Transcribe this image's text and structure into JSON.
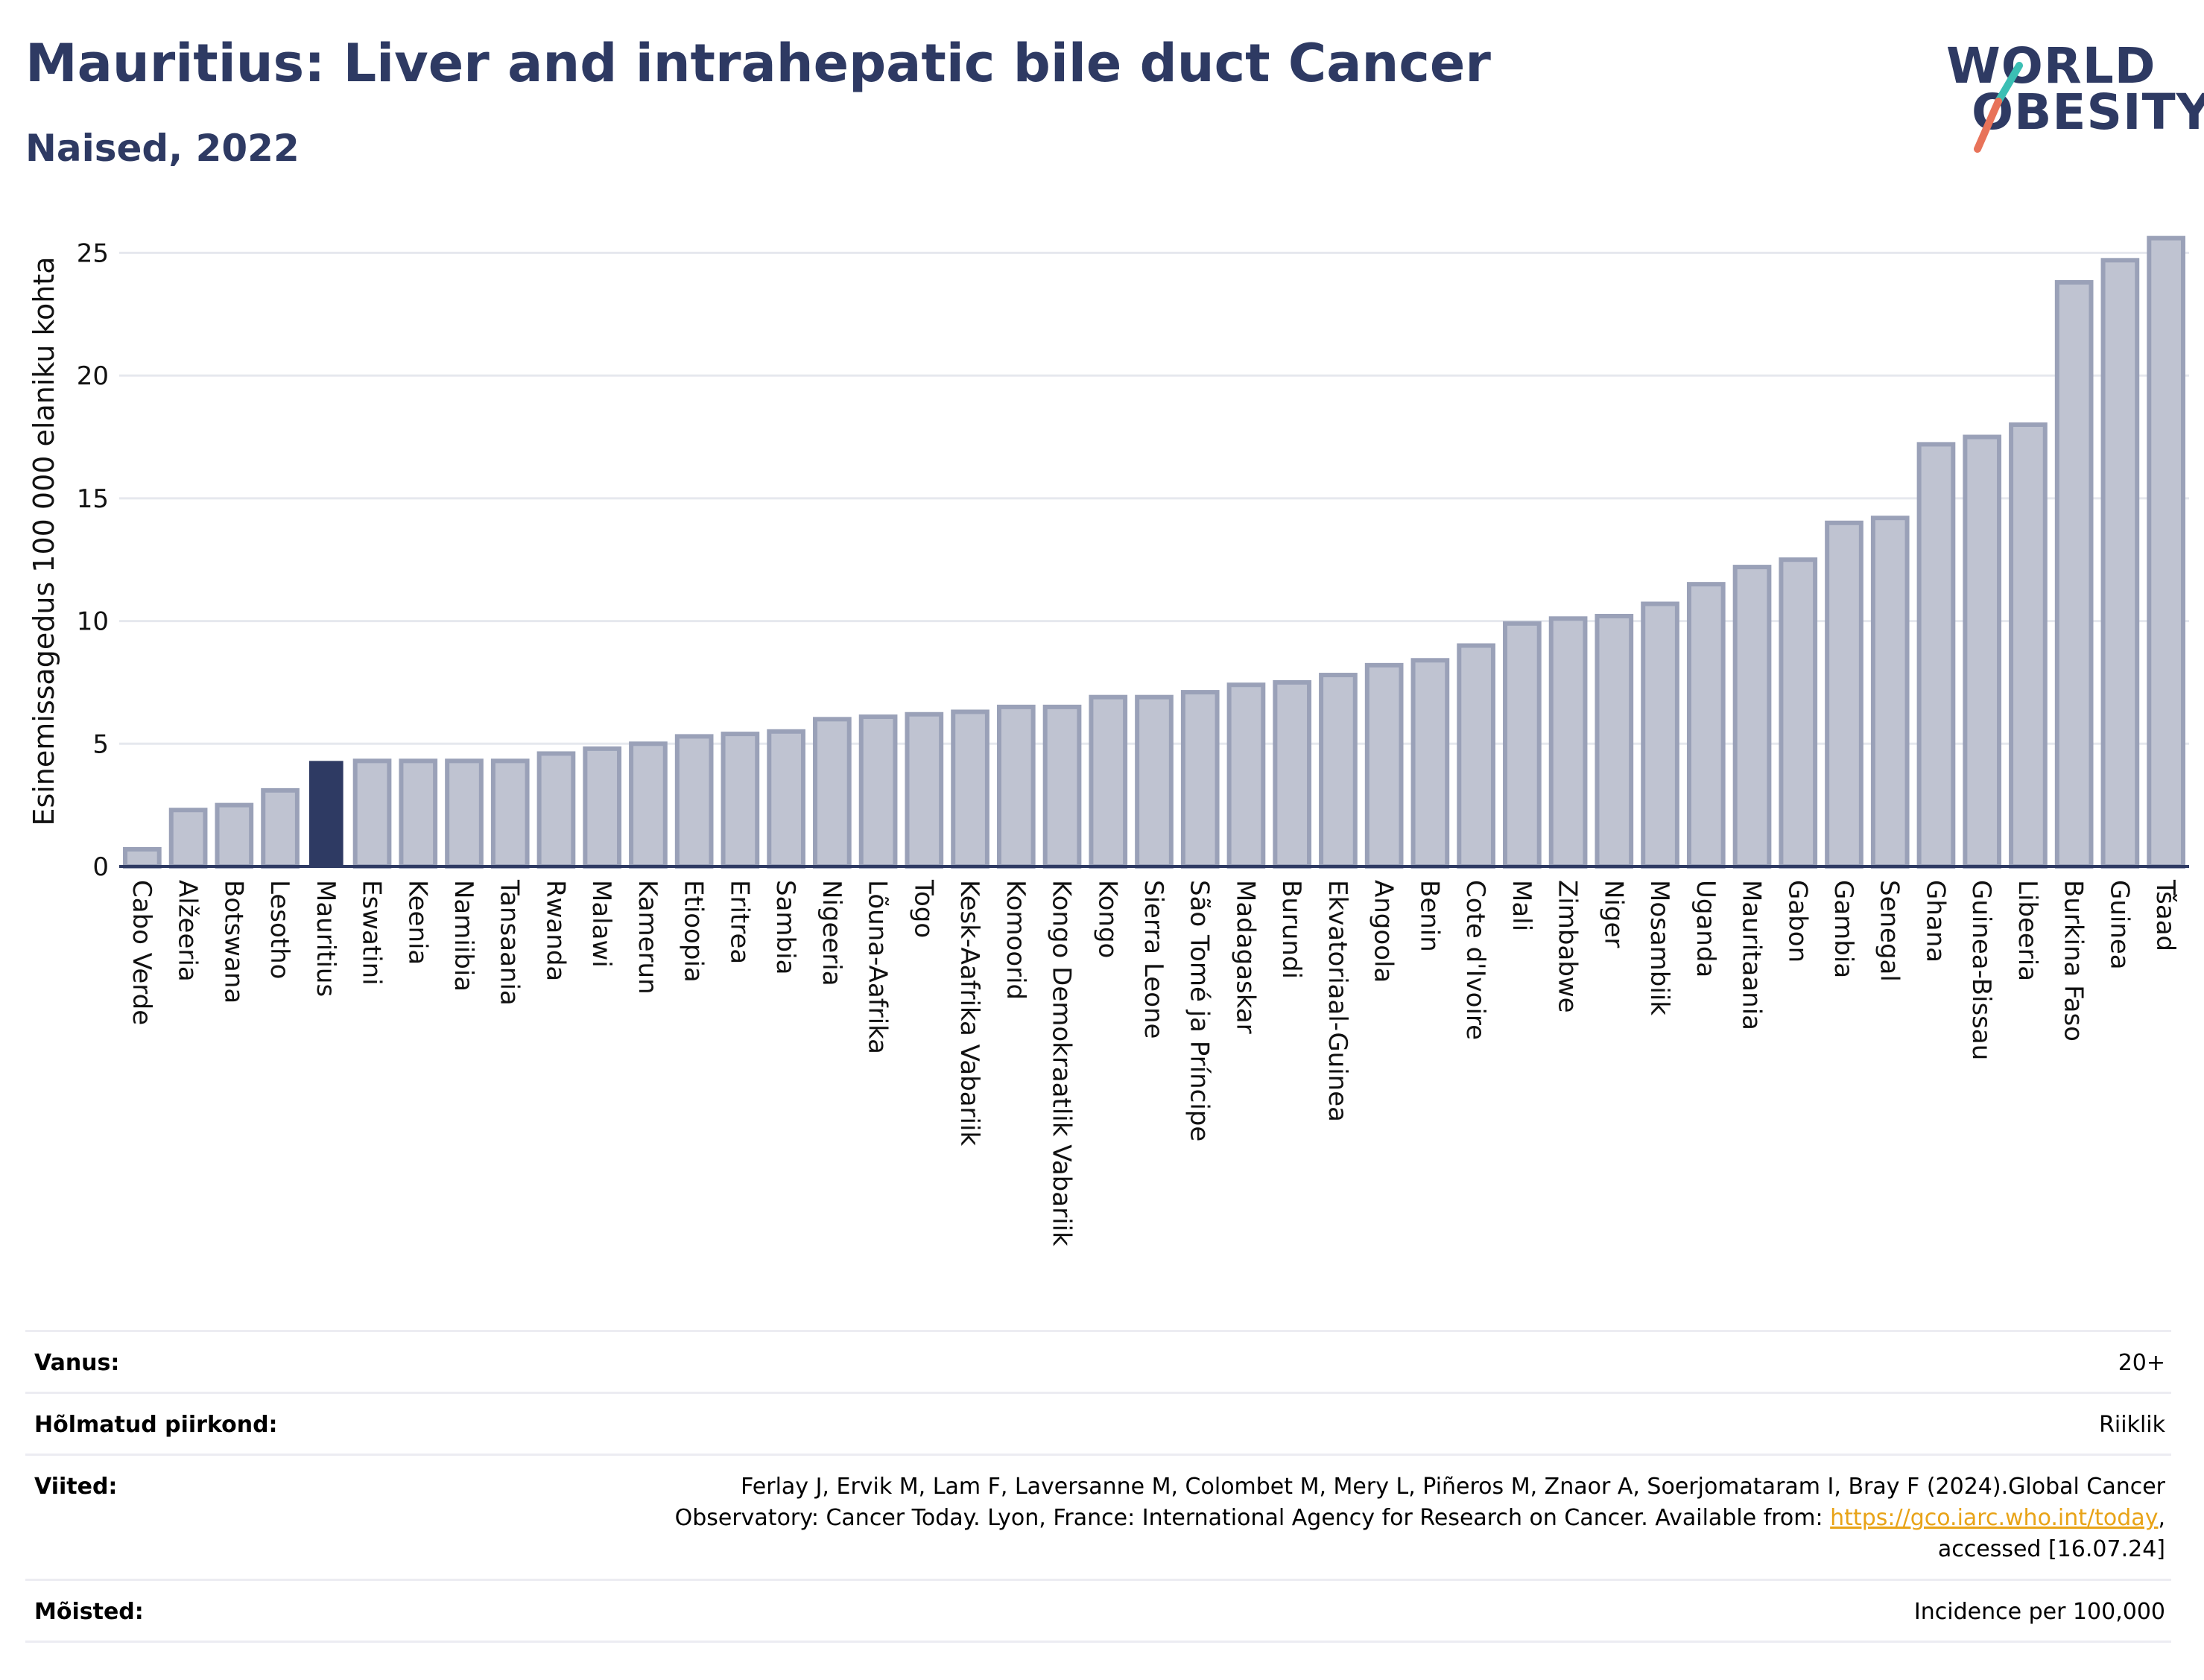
{
  "header": {
    "title": "Mauritius: Liver and intrahepatic bile duct Cancer",
    "subtitle": "Naised, 2022"
  },
  "logo": {
    "line1": "WORLD",
    "line2": "OBESITY",
    "slash_colors": [
      "#3bbfb4",
      "#e8735a"
    ]
  },
  "colors": {
    "bar_default": "#bfc3d1",
    "bar_default_stroke": "#9aa1b8",
    "bar_highlight": "#2e3a63",
    "axis": "#2e3a63",
    "grid": "#e6e8ee"
  },
  "chart_data": {
    "type": "bar",
    "ylabel": "Esinemissagedus 100 000 elaniku kohta",
    "xlabel": "",
    "ylim": [
      0,
      26.5
    ],
    "yticks": [
      0,
      5,
      10,
      15,
      20,
      25
    ],
    "grid": true,
    "highlight": "Mauritius",
    "categories": [
      "Cabo Verde",
      "Alžeeria",
      "Botswana",
      "Lesotho",
      "Mauritius",
      "Eswatini",
      "Keenia",
      "Namiibia",
      "Tansaania",
      "Rwanda",
      "Malawi",
      "Kamerun",
      "Etioopia",
      "Eritrea",
      "Sambia",
      "Nigeeria",
      "Lõuna-Aafrika",
      "Togo",
      "Kesk-Aafrika Vabariik",
      "Komoorid",
      "Kongo Demokraatlik Vabariik",
      "Kongo",
      "Sierra Leone",
      "São Tomé ja Príncipe",
      "Madagaskar",
      "Burundi",
      "Ekvatoriaal-Guinea",
      "Angoola",
      "Benin",
      "Cote d'Ivoire",
      "Mali",
      "Zimbabwe",
      "Niger",
      "Mosambiik",
      "Uganda",
      "Mauritaania",
      "Gabon",
      "Gambia",
      "Senegal",
      "Ghana",
      "Guinea-Bissau",
      "Libeeria",
      "Burkina Faso",
      "Guinea",
      "Tšaad"
    ],
    "values": [
      0.7,
      2.3,
      2.5,
      3.1,
      4.3,
      4.3,
      4.3,
      4.3,
      4.3,
      4.6,
      4.8,
      5.0,
      5.3,
      5.4,
      5.5,
      6.0,
      6.1,
      6.2,
      6.3,
      6.5,
      6.5,
      6.9,
      6.9,
      7.1,
      7.4,
      7.5,
      7.8,
      8.2,
      8.4,
      9.0,
      9.9,
      10.1,
      10.2,
      10.7,
      11.5,
      12.2,
      12.5,
      14.0,
      14.2,
      17.2,
      17.5,
      18.0,
      23.8,
      24.7,
      25.6
    ]
  },
  "meta": {
    "rows": [
      {
        "label": "Vanus:",
        "value": "20+"
      },
      {
        "label": "Hõlmatud piirkond:",
        "value": "Riiklik"
      },
      {
        "label": "Viited:",
        "value_lines": [
          "Ferlay J, Ervik M, Lam F, Laversanne M, Colombet M, Mery L, Piñeros M, Znaor A, Soerjomataram I, Bray F (2024).Global Cancer",
          "Observatory: Cancer Today. Lyon, France: International Agency for Research on Cancer. Available from: ",
          "accessed [16.07.24]"
        ],
        "link": "https://gco.iarc.who.int/today",
        "link_suffix": ","
      },
      {
        "label": "Mõisted:",
        "value": "Incidence per 100,000"
      }
    ]
  }
}
